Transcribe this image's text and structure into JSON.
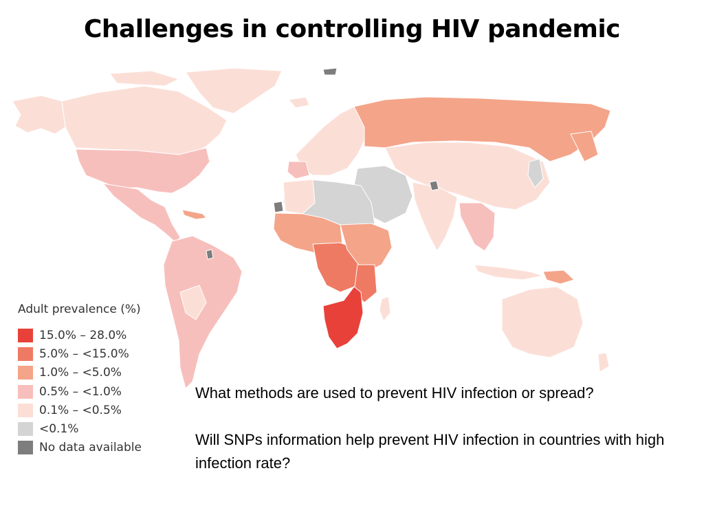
{
  "title": "Challenges in controlling HIV pandemic",
  "legend": {
    "title": "Adult prevalence (%)",
    "items": [
      {
        "label": "15.0% – 28.0%",
        "color": "#e8413a"
      },
      {
        "label": "5.0% – <15.0%",
        "color": "#ef7a63"
      },
      {
        "label": "1.0% – <5.0%",
        "color": "#f4a489"
      },
      {
        "label": "0.5% – <1.0%",
        "color": "#f7bfbc"
      },
      {
        "label": "0.1% – <0.5%",
        "color": "#fbdfd7"
      },
      {
        "label": "<0.1%",
        "color": "#d4d4d4"
      },
      {
        "label": "No data available",
        "color": "#7d7d7d"
      }
    ]
  },
  "questions": [
    "What methods are used to prevent HIV infection or spread?",
    "Will SNPs information help prevent HIV infection in countries with high infection rate?"
  ],
  "map_regions": [
    {
      "name": "North America",
      "level": "0.1% – <0.5%"
    },
    {
      "name": "Greenland",
      "level": "0.1% – <0.5%"
    },
    {
      "name": "United States",
      "level": "0.5% – <1.0%"
    },
    {
      "name": "Central America",
      "level": "0.5% – <1.0%"
    },
    {
      "name": "South America",
      "level": "0.5% – <1.0%"
    },
    {
      "name": "Europe",
      "level": "0.1% – <0.5%"
    },
    {
      "name": "Russia",
      "level": "1.0% – <5.0%"
    },
    {
      "name": "North Africa & Middle East",
      "level": "<0.1%"
    },
    {
      "name": "West & Central Africa",
      "level": "1.0% – <5.0%"
    },
    {
      "name": "East Africa",
      "level": "5.0% – <15.0%"
    },
    {
      "name": "Southern Africa",
      "level": "15.0% – 28.0%"
    },
    {
      "name": "Asia",
      "level": "0.1% – <0.5%"
    },
    {
      "name": "Southeast Asia",
      "level": "0.5% – <1.0%"
    },
    {
      "name": "Australia",
      "level": "0.1% – <0.5%"
    }
  ]
}
